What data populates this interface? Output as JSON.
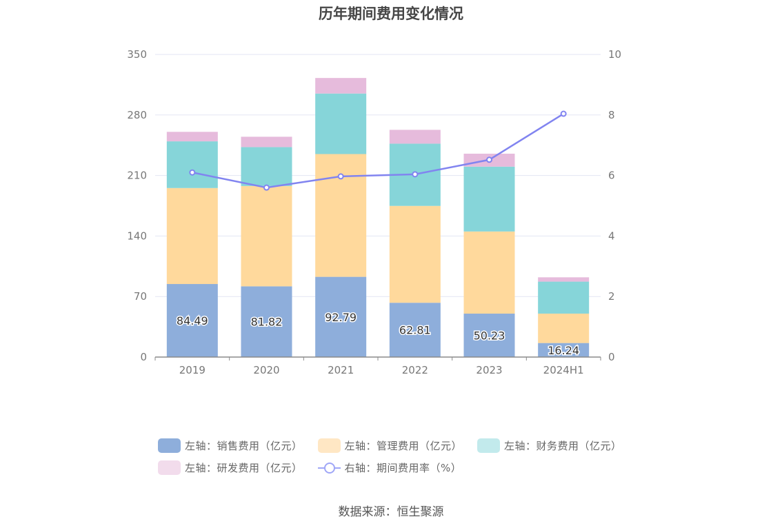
{
  "chart_data": {
    "type": "bar",
    "title": "历年期间费用变化情况",
    "categories": [
      "2019",
      "2020",
      "2021",
      "2022",
      "2023",
      "2024H1"
    ],
    "stacked": true,
    "y_left": {
      "ylim": [
        0,
        350
      ],
      "ticks": [
        "0",
        "70",
        "140",
        "210",
        "280",
        "350"
      ]
    },
    "y_right": {
      "ylim": [
        0,
        10
      ],
      "ticks": [
        "0",
        "2",
        "4",
        "6",
        "8",
        "10"
      ]
    },
    "grid": true,
    "legend_placement": "bottom",
    "series": [
      {
        "name": "左轴：销售费用（亿元）",
        "axis": "left",
        "values": [
          84.49,
          81.82,
          92.79,
          62.81,
          50.23,
          16.24
        ],
        "color": "#8eaedb",
        "data_labels": [
          "84.49",
          "81.82",
          "92.79",
          "62.81",
          "50.23",
          "16.24"
        ]
      },
      {
        "name": "左轴：管理费用（亿元）",
        "axis": "left",
        "values": [
          111,
          116,
          142,
          112,
          95,
          34
        ],
        "color": "#ffd99c"
      },
      {
        "name": "左轴：财务费用（亿元）",
        "axis": "left",
        "values": [
          54,
          45,
          70,
          72,
          75,
          37
        ],
        "color": "#86d5d9"
      },
      {
        "name": "左轴：研发费用（亿元）",
        "axis": "left",
        "values": [
          11,
          12,
          18,
          16,
          15,
          5
        ],
        "color": "#e6bbdc"
      },
      {
        "name": "右轴：期间费用率（%）",
        "axis": "right",
        "type": "line",
        "values": [
          6.1,
          5.6,
          5.97,
          6.04,
          6.52,
          8.04
        ],
        "color": "#8184f0"
      }
    ]
  },
  "legend_rows": [
    [
      {
        "label": "左轴：销售费用（亿元）",
        "color": "#8eaedb",
        "kind": "bar"
      },
      {
        "label": "左轴：管理费用（亿元）",
        "color": "#ffe7c4",
        "kind": "bar"
      },
      {
        "label": "左轴：财务费用（亿元）",
        "color": "#c2eaec",
        "kind": "bar"
      }
    ],
    [
      {
        "label": "左轴：研发费用（亿元）",
        "color": "#f2dcec",
        "kind": "bar"
      },
      {
        "label": "右轴：期间费用率（%）",
        "color": "#9fa6f7",
        "kind": "line"
      }
    ]
  ],
  "source": "数据来源：恒生聚源"
}
